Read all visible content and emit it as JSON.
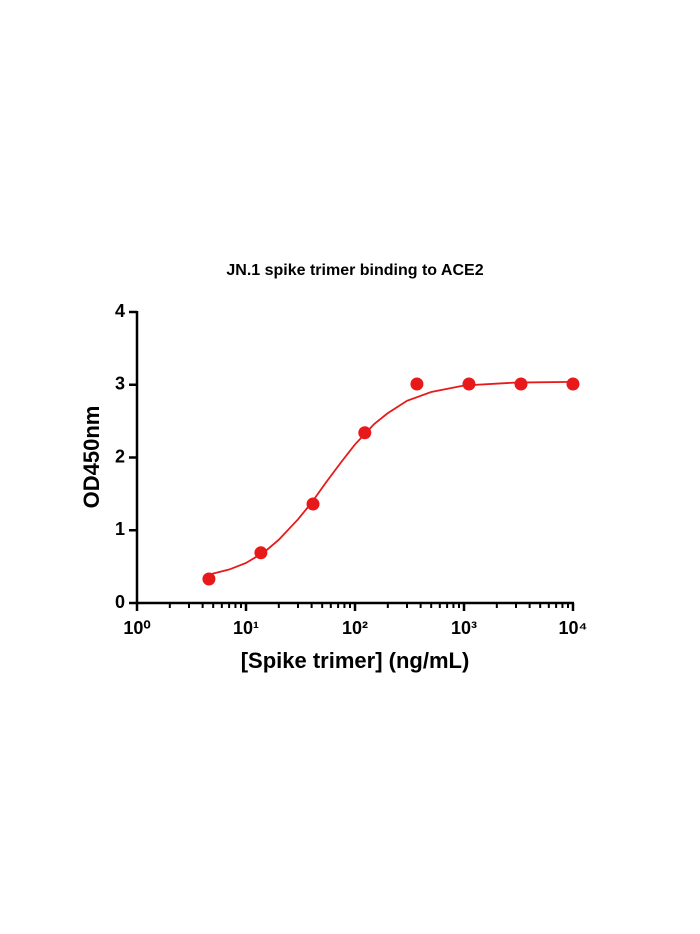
{
  "chart_data": {
    "type": "scatter",
    "title": "JN.1 spike trimer binding to ACE2",
    "x_label": "[Spike trimer] (ng/mL)",
    "y_label": "OD450nm",
    "x_scale": "log",
    "xlim": [
      1,
      10000
    ],
    "ylim": [
      0,
      4
    ],
    "xticks": [
      {
        "value": 1,
        "label": "10⁰"
      },
      {
        "value": 10,
        "label": "10¹"
      },
      {
        "value": 100,
        "label": "10²"
      },
      {
        "value": 1000,
        "label": "10³"
      },
      {
        "value": 10000,
        "label": "10⁴"
      }
    ],
    "xminorticks": [
      2,
      3,
      4,
      5,
      6,
      7,
      8,
      9,
      20,
      30,
      40,
      50,
      60,
      70,
      80,
      90,
      200,
      300,
      400,
      500,
      600,
      700,
      800,
      900,
      2000,
      3000,
      4000,
      5000,
      6000,
      7000,
      8000,
      9000
    ],
    "yticks": [
      0,
      1,
      2,
      3,
      4
    ],
    "color": "#e8191a",
    "x": [
      4.57,
      13.7,
      41.2,
      123,
      370,
      1111,
      3333,
      10000
    ],
    "values": [
      0.33,
      0.69,
      1.36,
      2.34,
      3.01,
      3.01,
      3.01,
      3.01
    ],
    "fit": {
      "x": [
        4.57,
        7,
        10,
        15,
        20,
        30,
        40,
        55,
        75,
        100,
        150,
        200,
        300,
        500,
        1000,
        3000,
        10000
      ],
      "values": [
        0.39,
        0.46,
        0.55,
        0.71,
        0.87,
        1.15,
        1.38,
        1.67,
        1.94,
        2.18,
        2.46,
        2.61,
        2.78,
        2.9,
        2.99,
        3.03,
        3.04
      ]
    }
  }
}
